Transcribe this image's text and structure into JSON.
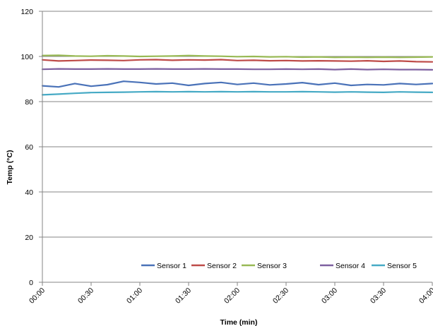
{
  "chart_data": {
    "type": "line",
    "title": "",
    "xlabel": "Time (min)",
    "ylabel": "Temp (°C)",
    "x_tick_labels": [
      "00:00",
      "00:30",
      "01:00",
      "01:30",
      "02:00",
      "02:30",
      "03:00",
      "03:30",
      "04:00"
    ],
    "x_unit": "minutes",
    "xlim": [
      0,
      240
    ],
    "ylim": [
      0,
      120
    ],
    "y_ticks": [
      0,
      20,
      40,
      60,
      80,
      100,
      120
    ],
    "grid": "horizontal",
    "legend_position": "bottom-right, inside plot",
    "x": [
      0,
      10,
      20,
      30,
      40,
      50,
      60,
      70,
      80,
      90,
      100,
      110,
      120,
      130,
      140,
      150,
      160,
      170,
      180,
      190,
      200,
      210,
      220,
      230,
      240
    ],
    "series": [
      {
        "name": "Sensor 1",
        "color": "#4a72b8",
        "values": [
          87.0,
          86.5,
          88.0,
          86.8,
          87.5,
          89.0,
          88.5,
          87.8,
          88.2,
          87.2,
          88.0,
          88.5,
          87.6,
          88.2,
          87.4,
          87.8,
          88.4,
          87.5,
          88.2,
          87.2,
          87.6,
          87.4,
          88.0,
          87.6,
          88.0
        ]
      },
      {
        "name": "Sensor 2",
        "color": "#be4b48",
        "values": [
          98.5,
          98.0,
          98.2,
          98.4,
          98.3,
          98.2,
          98.5,
          98.6,
          98.3,
          98.5,
          98.4,
          98.6,
          98.2,
          98.3,
          98.1,
          98.2,
          98.0,
          98.1,
          98.0,
          97.9,
          98.1,
          97.8,
          98.0,
          97.7,
          97.6
        ]
      },
      {
        "name": "Sensor 3",
        "color": "#98b954",
        "values": [
          100.4,
          100.5,
          100.2,
          100.1,
          100.3,
          100.2,
          100.0,
          100.1,
          100.2,
          100.4,
          100.2,
          100.1,
          99.9,
          100.0,
          99.8,
          99.9,
          99.7,
          99.8,
          99.6,
          99.7,
          99.6,
          99.7,
          99.6,
          99.7,
          99.8
        ]
      },
      {
        "name": "Sensor 4",
        "color": "#7d60a0",
        "values": [
          94.3,
          94.5,
          94.4,
          94.4,
          94.5,
          94.4,
          94.4,
          94.5,
          94.4,
          94.4,
          94.5,
          94.4,
          94.4,
          94.3,
          94.3,
          94.4,
          94.3,
          94.4,
          94.2,
          94.4,
          94.2,
          94.3,
          94.2,
          94.2,
          94.1
        ]
      },
      {
        "name": "Sensor 5",
        "color": "#46aac5",
        "values": [
          83.0,
          83.3,
          83.7,
          84.0,
          84.1,
          84.2,
          84.3,
          84.4,
          84.3,
          84.4,
          84.3,
          84.4,
          84.3,
          84.4,
          84.3,
          84.3,
          84.4,
          84.3,
          84.2,
          84.3,
          84.2,
          84.1,
          84.3,
          84.2,
          84.1
        ]
      }
    ]
  }
}
